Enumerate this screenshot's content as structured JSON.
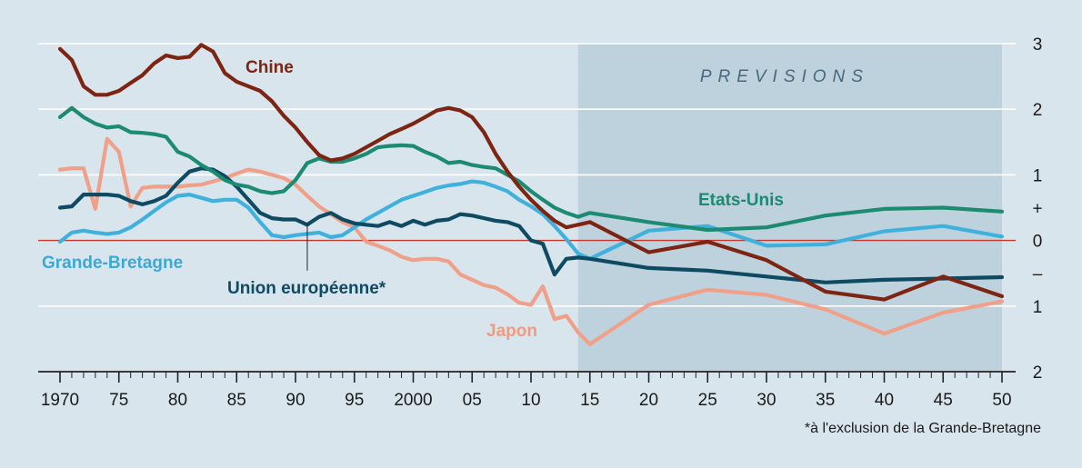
{
  "chart_data": {
    "type": "line",
    "title": "",
    "xlabel": "",
    "ylabel": "",
    "xlim": [
      1970,
      2050
    ],
    "ylim": [
      -2,
      3
    ],
    "forecast_range": [
      2014,
      2050
    ],
    "forecast_label": "PREVISIONS",
    "footnote": "*à l'exclusion de la Grande-Bretagne",
    "x_tick_values": [
      1970,
      1975,
      1980,
      1985,
      1990,
      1995,
      2000,
      2005,
      2010,
      2015,
      2020,
      2025,
      2030,
      2035,
      2040,
      2045,
      2050
    ],
    "x_tick_labels": [
      "1970",
      "75",
      "80",
      "85",
      "90",
      "95",
      "2000",
      "05",
      "10",
      "15",
      "20",
      "25",
      "30",
      "35",
      "40",
      "45",
      "50"
    ],
    "y_tick_values": [
      3,
      2,
      1,
      0.5,
      0,
      -0.5,
      -1,
      -2
    ],
    "y_tick_labels": [
      "3",
      "2",
      "1",
      "+",
      "0",
      "–",
      "1",
      "2"
    ],
    "y_grid": [
      3,
      2,
      1,
      -1
    ],
    "zero_line_color": "#c0392b",
    "colors": {
      "background": "#d9e5ec",
      "forecast_band": "#bed2de",
      "grid": "#ffffff",
      "axis": "#222222"
    },
    "series": [
      {
        "name": "Japon",
        "color": "#f0a088",
        "label_color": "#f09a80",
        "x": [
          1970,
          1971,
          1972,
          1973,
          1974,
          1975,
          1976,
          1977,
          1978,
          1979,
          1980,
          1981,
          1982,
          1983,
          1984,
          1985,
          1986,
          1987,
          1988,
          1989,
          1990,
          1991,
          1992,
          1993,
          1994,
          1995,
          1996,
          1997,
          1998,
          1999,
          2000,
          2001,
          2002,
          2003,
          2004,
          2005,
          2006,
          2007,
          2008,
          2009,
          2010,
          2011,
          2012,
          2013,
          2014,
          2015,
          2020,
          2025,
          2030,
          2035,
          2040,
          2045,
          2050
        ],
        "values": [
          1.08,
          1.1,
          1.1,
          0.48,
          1.55,
          1.35,
          0.52,
          0.8,
          0.82,
          0.82,
          0.82,
          0.84,
          0.85,
          0.9,
          0.95,
          1.02,
          1.08,
          1.05,
          1.0,
          0.95,
          0.85,
          0.68,
          0.52,
          0.4,
          0.28,
          0.2,
          -0.02,
          -0.08,
          -0.15,
          -0.25,
          -0.3,
          -0.28,
          -0.28,
          -0.32,
          -0.52,
          -0.6,
          -0.68,
          -0.72,
          -0.82,
          -0.95,
          -0.98,
          -0.7,
          -1.2,
          -1.15,
          -1.4,
          -1.58,
          -0.98,
          -0.75,
          -0.83,
          -1.05,
          -1.42,
          -1.1,
          -0.93
        ]
      },
      {
        "name": "Grande-Bretagne",
        "color": "#3fb1dc",
        "label_color": "#3aa9d8",
        "x": [
          1970,
          1971,
          1972,
          1973,
          1974,
          1975,
          1976,
          1977,
          1978,
          1979,
          1980,
          1981,
          1982,
          1983,
          1984,
          1985,
          1986,
          1987,
          1988,
          1989,
          1990,
          1991,
          1992,
          1993,
          1994,
          1995,
          1996,
          1997,
          1998,
          1999,
          2000,
          2001,
          2002,
          2003,
          2004,
          2005,
          2006,
          2007,
          2008,
          2009,
          2010,
          2011,
          2012,
          2013,
          2014,
          2015,
          2020,
          2025,
          2030,
          2035,
          2040,
          2045,
          2050
        ],
        "values": [
          -0.02,
          0.12,
          0.15,
          0.12,
          0.1,
          0.12,
          0.2,
          0.32,
          0.45,
          0.58,
          0.68,
          0.7,
          0.65,
          0.6,
          0.62,
          0.62,
          0.5,
          0.28,
          0.08,
          0.05,
          0.08,
          0.1,
          0.12,
          0.05,
          0.08,
          0.2,
          0.32,
          0.42,
          0.52,
          0.62,
          0.68,
          0.74,
          0.8,
          0.84,
          0.86,
          0.9,
          0.88,
          0.82,
          0.75,
          0.62,
          0.52,
          0.4,
          0.22,
          0.02,
          -0.2,
          -0.28,
          0.15,
          0.22,
          -0.08,
          -0.06,
          0.14,
          0.22,
          0.06
        ]
      },
      {
        "name": "Union européenne*",
        "color": "#0e4a62",
        "label_color": "#0e4a62",
        "x": [
          1970,
          1971,
          1972,
          1973,
          1974,
          1975,
          1976,
          1977,
          1978,
          1979,
          1980,
          1981,
          1982,
          1983,
          1984,
          1985,
          1986,
          1987,
          1988,
          1989,
          1990,
          1991,
          1992,
          1993,
          1994,
          1995,
          1996,
          1997,
          1998,
          1999,
          2000,
          2001,
          2002,
          2003,
          2004,
          2005,
          2006,
          2007,
          2008,
          2009,
          2010,
          2011,
          2012,
          2013,
          2014,
          2015,
          2020,
          2025,
          2030,
          2035,
          2040,
          2045,
          2050
        ],
        "values": [
          0.5,
          0.52,
          0.7,
          0.7,
          0.7,
          0.68,
          0.6,
          0.55,
          0.6,
          0.68,
          0.88,
          1.05,
          1.1,
          1.08,
          0.98,
          0.82,
          0.62,
          0.42,
          0.34,
          0.32,
          0.32,
          0.24,
          0.36,
          0.42,
          0.32,
          0.26,
          0.24,
          0.22,
          0.28,
          0.22,
          0.3,
          0.24,
          0.3,
          0.32,
          0.4,
          0.38,
          0.34,
          0.3,
          0.28,
          0.22,
          0.0,
          -0.05,
          -0.52,
          -0.28,
          -0.26,
          -0.28,
          -0.42,
          -0.46,
          -0.55,
          -0.64,
          -0.6,
          -0.58,
          -0.56
        ]
      },
      {
        "name": "Etats-Unis",
        "color": "#1d8a72",
        "label_color": "#1b8a70",
        "x": [
          1970,
          1971,
          1972,
          1973,
          1974,
          1975,
          1976,
          1977,
          1978,
          1979,
          1980,
          1981,
          1982,
          1983,
          1984,
          1985,
          1986,
          1987,
          1988,
          1989,
          1990,
          1991,
          1992,
          1993,
          1994,
          1995,
          1996,
          1997,
          1998,
          1999,
          2000,
          2001,
          2002,
          2003,
          2004,
          2005,
          2006,
          2007,
          2008,
          2009,
          2010,
          2011,
          2012,
          2013,
          2014,
          2015,
          2020,
          2025,
          2030,
          2035,
          2040,
          2045,
          2050
        ],
        "values": [
          1.88,
          2.02,
          1.88,
          1.78,
          1.72,
          1.74,
          1.65,
          1.64,
          1.62,
          1.58,
          1.35,
          1.28,
          1.15,
          1.05,
          0.92,
          0.85,
          0.82,
          0.75,
          0.72,
          0.75,
          0.92,
          1.18,
          1.25,
          1.2,
          1.2,
          1.25,
          1.32,
          1.42,
          1.44,
          1.45,
          1.44,
          1.35,
          1.28,
          1.18,
          1.2,
          1.15,
          1.12,
          1.1,
          1.0,
          0.9,
          0.75,
          0.62,
          0.5,
          0.42,
          0.36,
          0.42,
          0.28,
          0.16,
          0.2,
          0.38,
          0.48,
          0.5,
          0.44
        ]
      },
      {
        "name": "Chine",
        "color": "#7d2412",
        "label_color": "#7d2412",
        "x": [
          1970,
          1971,
          1972,
          1973,
          1974,
          1975,
          1976,
          1977,
          1978,
          1979,
          1980,
          1981,
          1982,
          1983,
          1984,
          1985,
          1986,
          1987,
          1988,
          1989,
          1990,
          1991,
          1992,
          1993,
          1994,
          1995,
          1996,
          1997,
          1998,
          1999,
          2000,
          2001,
          2002,
          2003,
          2004,
          2005,
          2006,
          2007,
          2008,
          2009,
          2010,
          2011,
          2012,
          2013,
          2014,
          2015,
          2020,
          2025,
          2030,
          2035,
          2040,
          2045,
          2050
        ],
        "values": [
          2.92,
          2.75,
          2.35,
          2.22,
          2.22,
          2.28,
          2.4,
          2.52,
          2.7,
          2.82,
          2.78,
          2.8,
          2.98,
          2.88,
          2.55,
          2.42,
          2.35,
          2.28,
          2.12,
          1.9,
          1.72,
          1.5,
          1.3,
          1.22,
          1.25,
          1.32,
          1.42,
          1.52,
          1.62,
          1.7,
          1.78,
          1.88,
          1.98,
          2.02,
          1.98,
          1.88,
          1.65,
          1.32,
          1.05,
          0.82,
          0.62,
          0.45,
          0.3,
          0.2,
          0.24,
          0.28,
          -0.18,
          -0.02,
          -0.3,
          -0.78,
          -0.9,
          -0.55,
          -0.85
        ]
      }
    ],
    "annotations": [
      {
        "series": "Union européenne*",
        "leader_x": 1991,
        "leader_y_from": 0.26,
        "leader_y_to": -0.46
      }
    ]
  }
}
